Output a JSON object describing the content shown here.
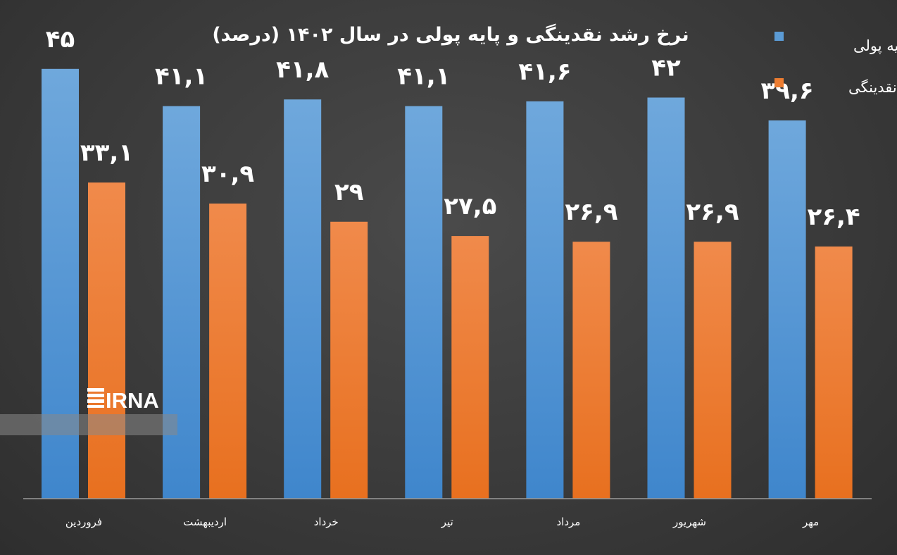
{
  "chart_data": {
    "type": "bar",
    "title": "نرخ رشد نقدینگی و پایه پولی در سال ۱۴۰۲ (درصد)",
    "categories": [
      "فروردین",
      "اردیبهشت",
      "خرداد",
      "تیر",
      "مرداد",
      "شهریور",
      "مهر"
    ],
    "series": [
      {
        "name": "پایه پولی",
        "color": "#5b9bd5",
        "values": [
          45,
          41.1,
          41.8,
          41.1,
          41.6,
          42,
          39.6
        ],
        "labels": [
          "۴۵",
          "۴۱,۱",
          "۴۱,۸",
          "۴۱,۱",
          "۴۱,۶",
          "۴۲",
          "۳۹,۶"
        ]
      },
      {
        "name": "نقدینگی",
        "color": "#ed7d31",
        "values": [
          33.1,
          30.9,
          29,
          27.5,
          26.9,
          26.9,
          26.4
        ],
        "labels": [
          "۳۳,۱",
          "۳۰,۹",
          "۲۹",
          "۲۷,۵",
          "۲۶,۹",
          "۲۶,۹",
          "۲۶,۴"
        ]
      }
    ],
    "ylim": [
      0,
      50
    ],
    "grid": false,
    "legend_position": "top-right"
  },
  "watermark": {
    "text": "IRNA",
    "icon": "irna-logo-icon"
  }
}
